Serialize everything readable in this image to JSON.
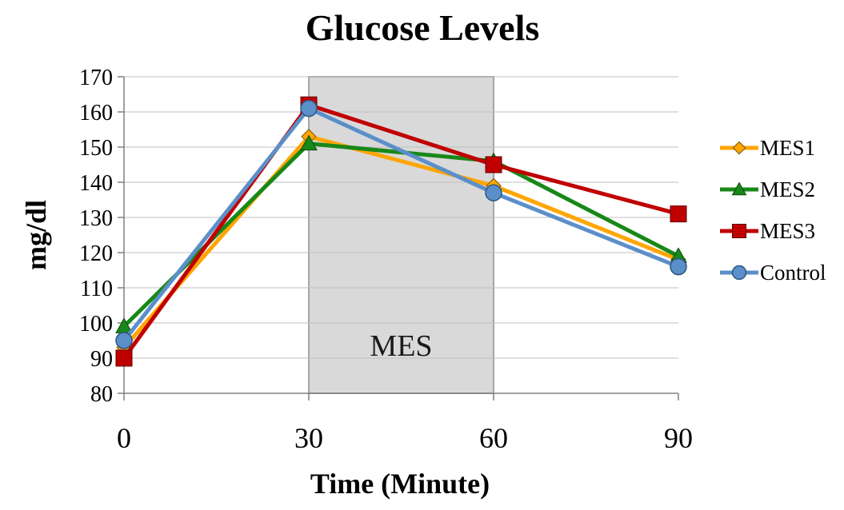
{
  "chart_data": {
    "type": "line",
    "title": "Glucose Levels",
    "xlabel": "Time (Minute)",
    "ylabel": "mg/dl",
    "x": [
      0,
      30,
      60,
      90
    ],
    "xlim": [
      0,
      90
    ],
    "ylim": [
      80,
      170
    ],
    "yticks": [
      80,
      90,
      100,
      110,
      120,
      130,
      140,
      150,
      160,
      170
    ],
    "xticks": [
      0,
      30,
      60,
      90
    ],
    "grid": "horizontal",
    "legend_position": "right",
    "shaded_region": {
      "x_start": 30,
      "x_end": 60,
      "label": "MES",
      "color": "#d9d9d9"
    },
    "series": [
      {
        "name": "MES1",
        "values": [
          93,
          153,
          139,
          118
        ],
        "color": "#ffa500",
        "marker": "diamond"
      },
      {
        "name": "MES2",
        "values": [
          99,
          151,
          146,
          119
        ],
        "color": "#188818",
        "marker": "triangle"
      },
      {
        "name": "MES3",
        "values": [
          90,
          162,
          145,
          131
        ],
        "color": "#c00000",
        "marker": "square"
      },
      {
        "name": "Control",
        "values": [
          95,
          161,
          137,
          116
        ],
        "color": "#5b8fc9",
        "marker": "circle"
      }
    ]
  }
}
